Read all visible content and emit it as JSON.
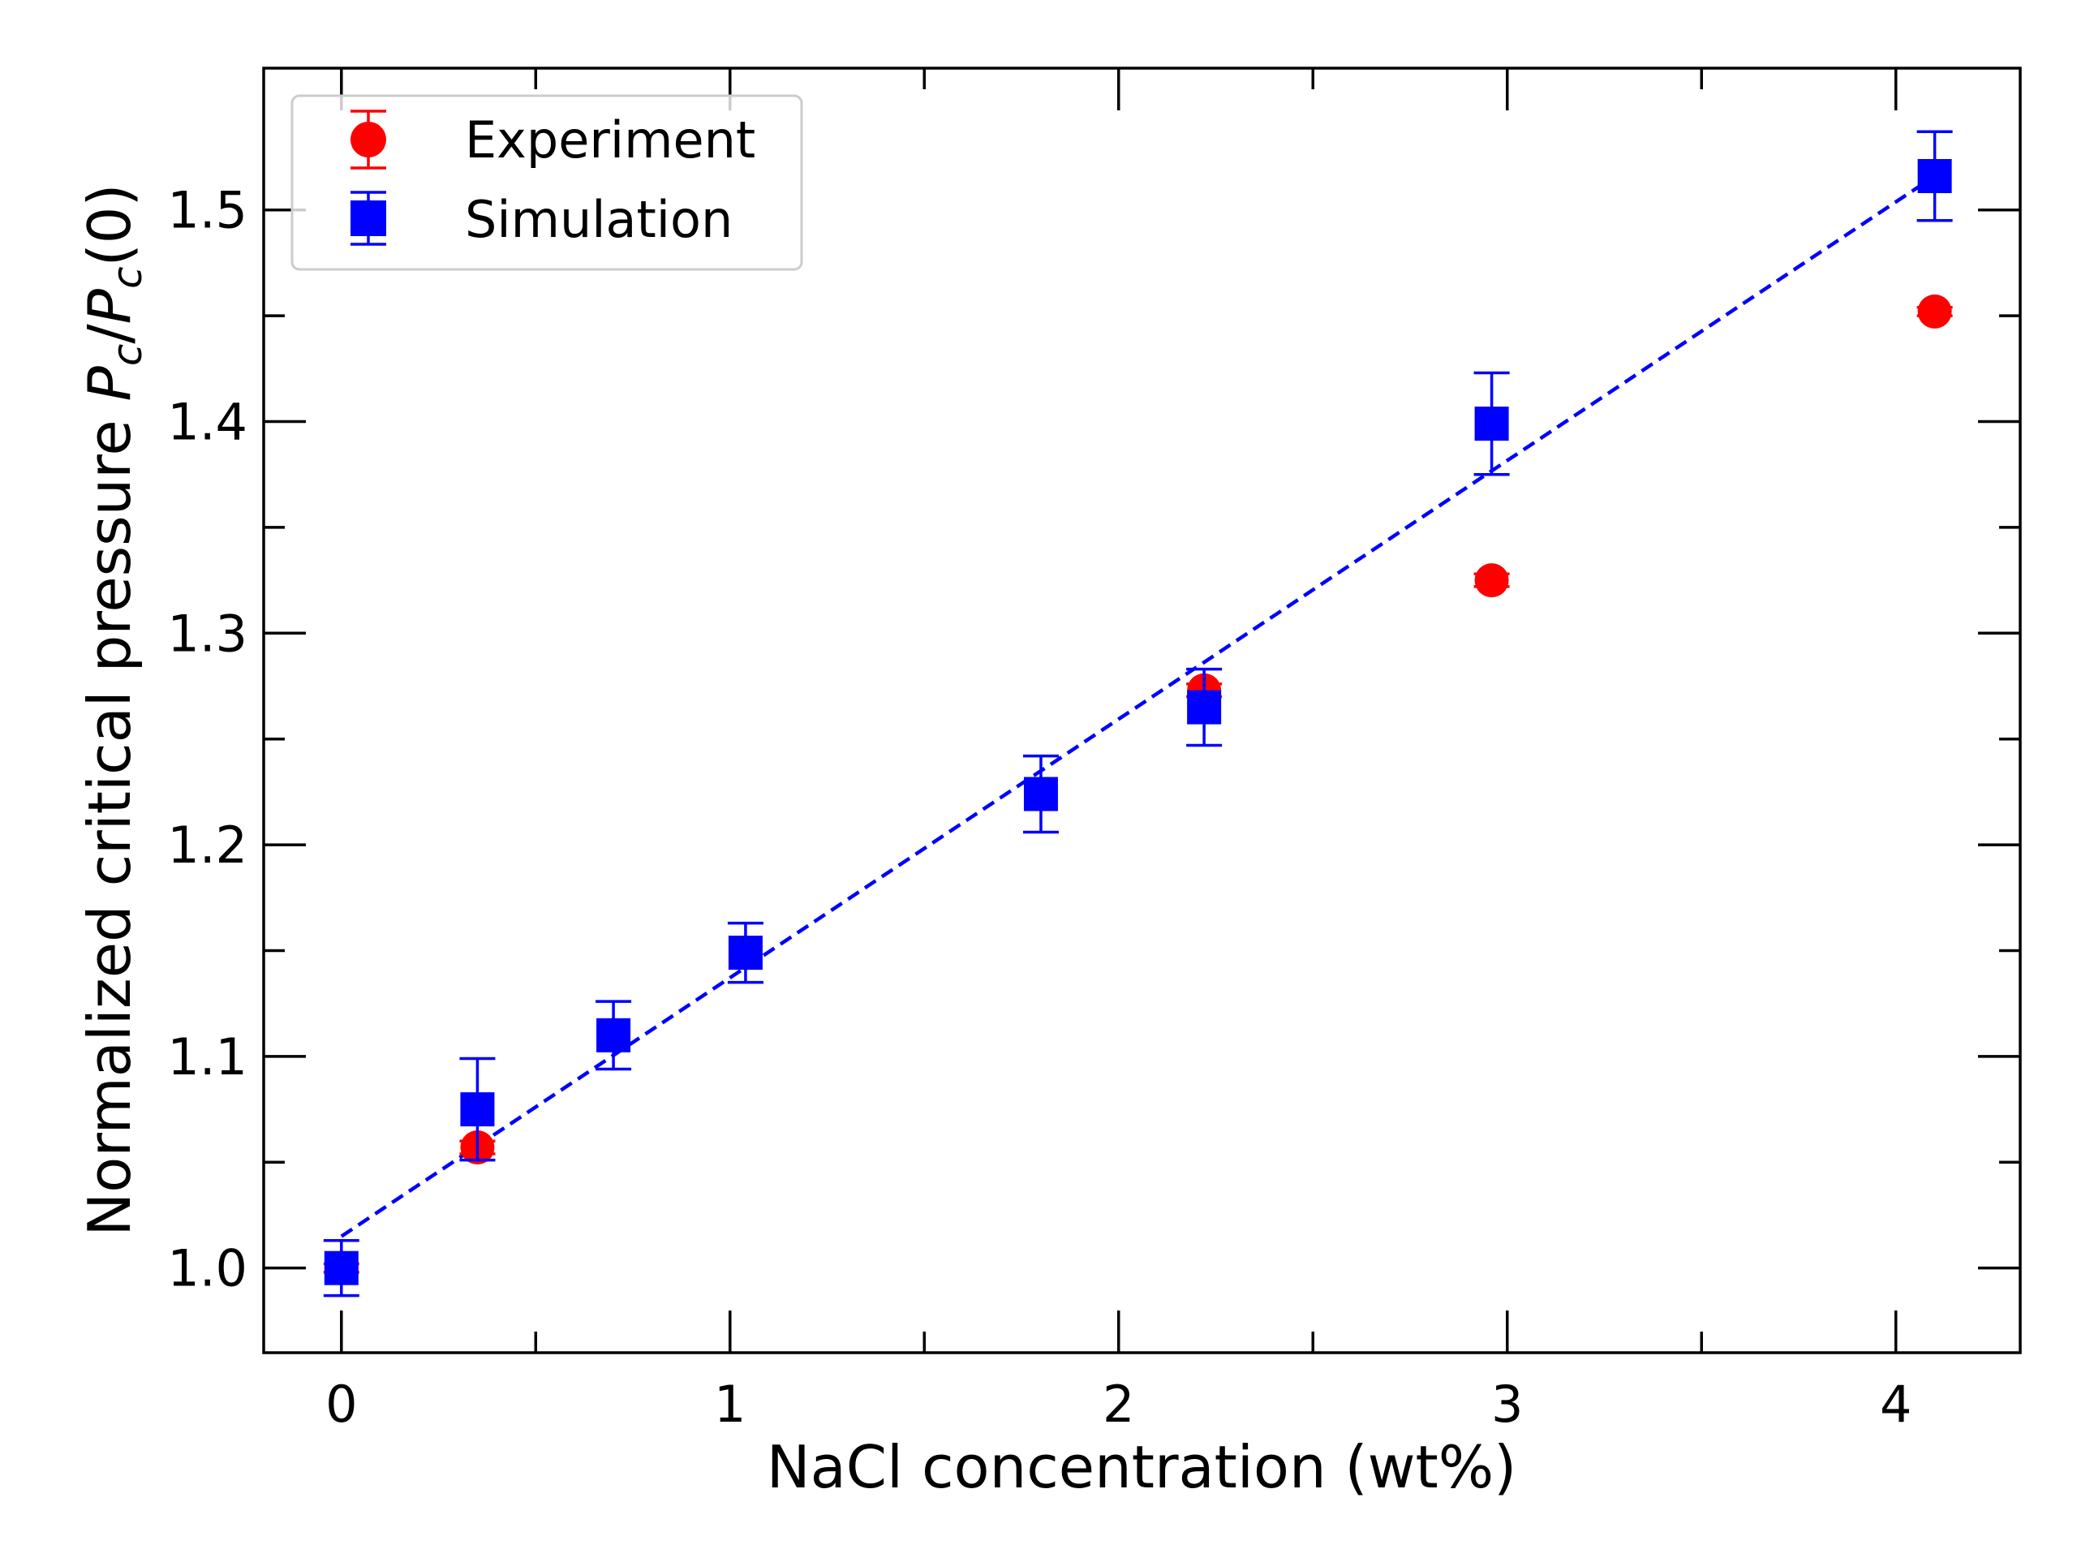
{
  "chart_data": {
    "type": "scatter",
    "xlabel": "NaCl concentration (wt%)",
    "ylabel": {
      "prefix": "Normalized critical pressure ",
      "P1": "P",
      "sub1": "c",
      "slash": "/",
      "P2": "P",
      "sub2": "c",
      "suffix": "(0)"
    },
    "xlim": [
      -0.2,
      4.32
    ],
    "ylim": [
      0.96,
      1.567
    ],
    "xticks": [
      0,
      1,
      2,
      3,
      4
    ],
    "xtick_labels": [
      "0",
      "1",
      "2",
      "3",
      "4"
    ],
    "xminor": [
      0.5,
      1.5,
      2.5,
      3.5
    ],
    "yticks": [
      1.0,
      1.1,
      1.2,
      1.3,
      1.4,
      1.5
    ],
    "ytick_labels": [
      "1.0",
      "1.1",
      "1.2",
      "1.3",
      "1.4",
      "1.5"
    ],
    "yminor": [
      1.05,
      1.15,
      1.25,
      1.35,
      1.45
    ],
    "legend": {
      "position": "top-left",
      "entries": [
        "Experiment",
        "Simulation"
      ]
    },
    "series": [
      {
        "name": "Experiment",
        "marker": "circle",
        "color": "#ff0000",
        "x": [
          0.0,
          0.35,
          2.22,
          2.96,
          4.1
        ],
        "y": [
          1.0,
          1.057,
          1.273,
          1.325,
          1.452
        ],
        "yerr": [
          0.002,
          0.003,
          0.003,
          0.003,
          0.002
        ]
      },
      {
        "name": "Simulation",
        "marker": "square",
        "color": "#0000ff",
        "x": [
          0.0,
          0.35,
          0.7,
          1.04,
          1.8,
          2.22,
          2.96,
          4.1
        ],
        "y": [
          1.0,
          1.075,
          1.11,
          1.149,
          1.224,
          1.265,
          1.399,
          1.516
        ],
        "yerr": [
          0.013,
          0.024,
          0.016,
          0.014,
          0.018,
          0.018,
          0.024,
          0.021
        ]
      }
    ],
    "fit_line": {
      "name": "Simulation fit",
      "color": "#0000ff",
      "style": "dashed",
      "x": [
        0.0,
        4.1
      ],
      "y": [
        1.015,
        1.516
      ]
    }
  }
}
